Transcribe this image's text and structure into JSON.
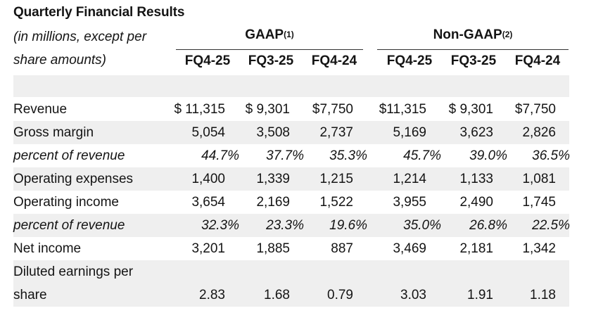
{
  "title": "Quarterly Financial Results",
  "header": {
    "note_line1": "(in millions, except per",
    "note_line2": "share amounts)",
    "gaap_label": "GAAP",
    "gaap_sup": "(1)",
    "nongaap_label": "Non-GAAP",
    "nongaap_sup": "(2)",
    "gaap_periods": [
      "FQ4-25",
      "FQ3-25",
      "FQ4-24"
    ],
    "nongaap_periods": [
      "FQ4-25",
      "FQ3-25",
      "FQ4-24"
    ]
  },
  "rows": [
    {
      "label": "Revenue",
      "italic": false,
      "values": [
        "$ 11,315",
        "$ 9,301",
        "$7,750",
        "$11,315",
        "$ 9,301",
        "$7,750"
      ]
    },
    {
      "label": "Gross margin",
      "italic": false,
      "values": [
        "5,054",
        "3,508",
        "2,737",
        "5,169",
        "3,623",
        "2,826"
      ]
    },
    {
      "label": "percent of revenue",
      "italic": true,
      "values": [
        "44.7%",
        "37.7%",
        "35.3%",
        "45.7%",
        "39.0%",
        "36.5%"
      ]
    },
    {
      "label": "Operating expenses",
      "italic": false,
      "values": [
        "1,400",
        "1,339",
        "1,215",
        "1,214",
        "1,133",
        "1,081"
      ]
    },
    {
      "label": "Operating income",
      "italic": false,
      "values": [
        "3,654",
        "2,169",
        "1,522",
        "3,955",
        "2,490",
        "1,745"
      ]
    },
    {
      "label": "percent of revenue",
      "italic": true,
      "values": [
        "32.3%",
        "23.3%",
        "19.6%",
        "35.0%",
        "26.8%",
        "22.5%"
      ]
    },
    {
      "label": "Net income",
      "italic": false,
      "values": [
        "3,201",
        "1,885",
        "887",
        "3,469",
        "2,181",
        "1,342"
      ]
    },
    {
      "label": "Diluted earnings per",
      "italic": false,
      "values": [
        "",
        "",
        "",
        "",
        "",
        ""
      ]
    },
    {
      "label": "share",
      "italic": false,
      "values": [
        "2.83",
        "1.68",
        "0.79",
        "3.03",
        "1.91",
        "1.18"
      ]
    }
  ]
}
